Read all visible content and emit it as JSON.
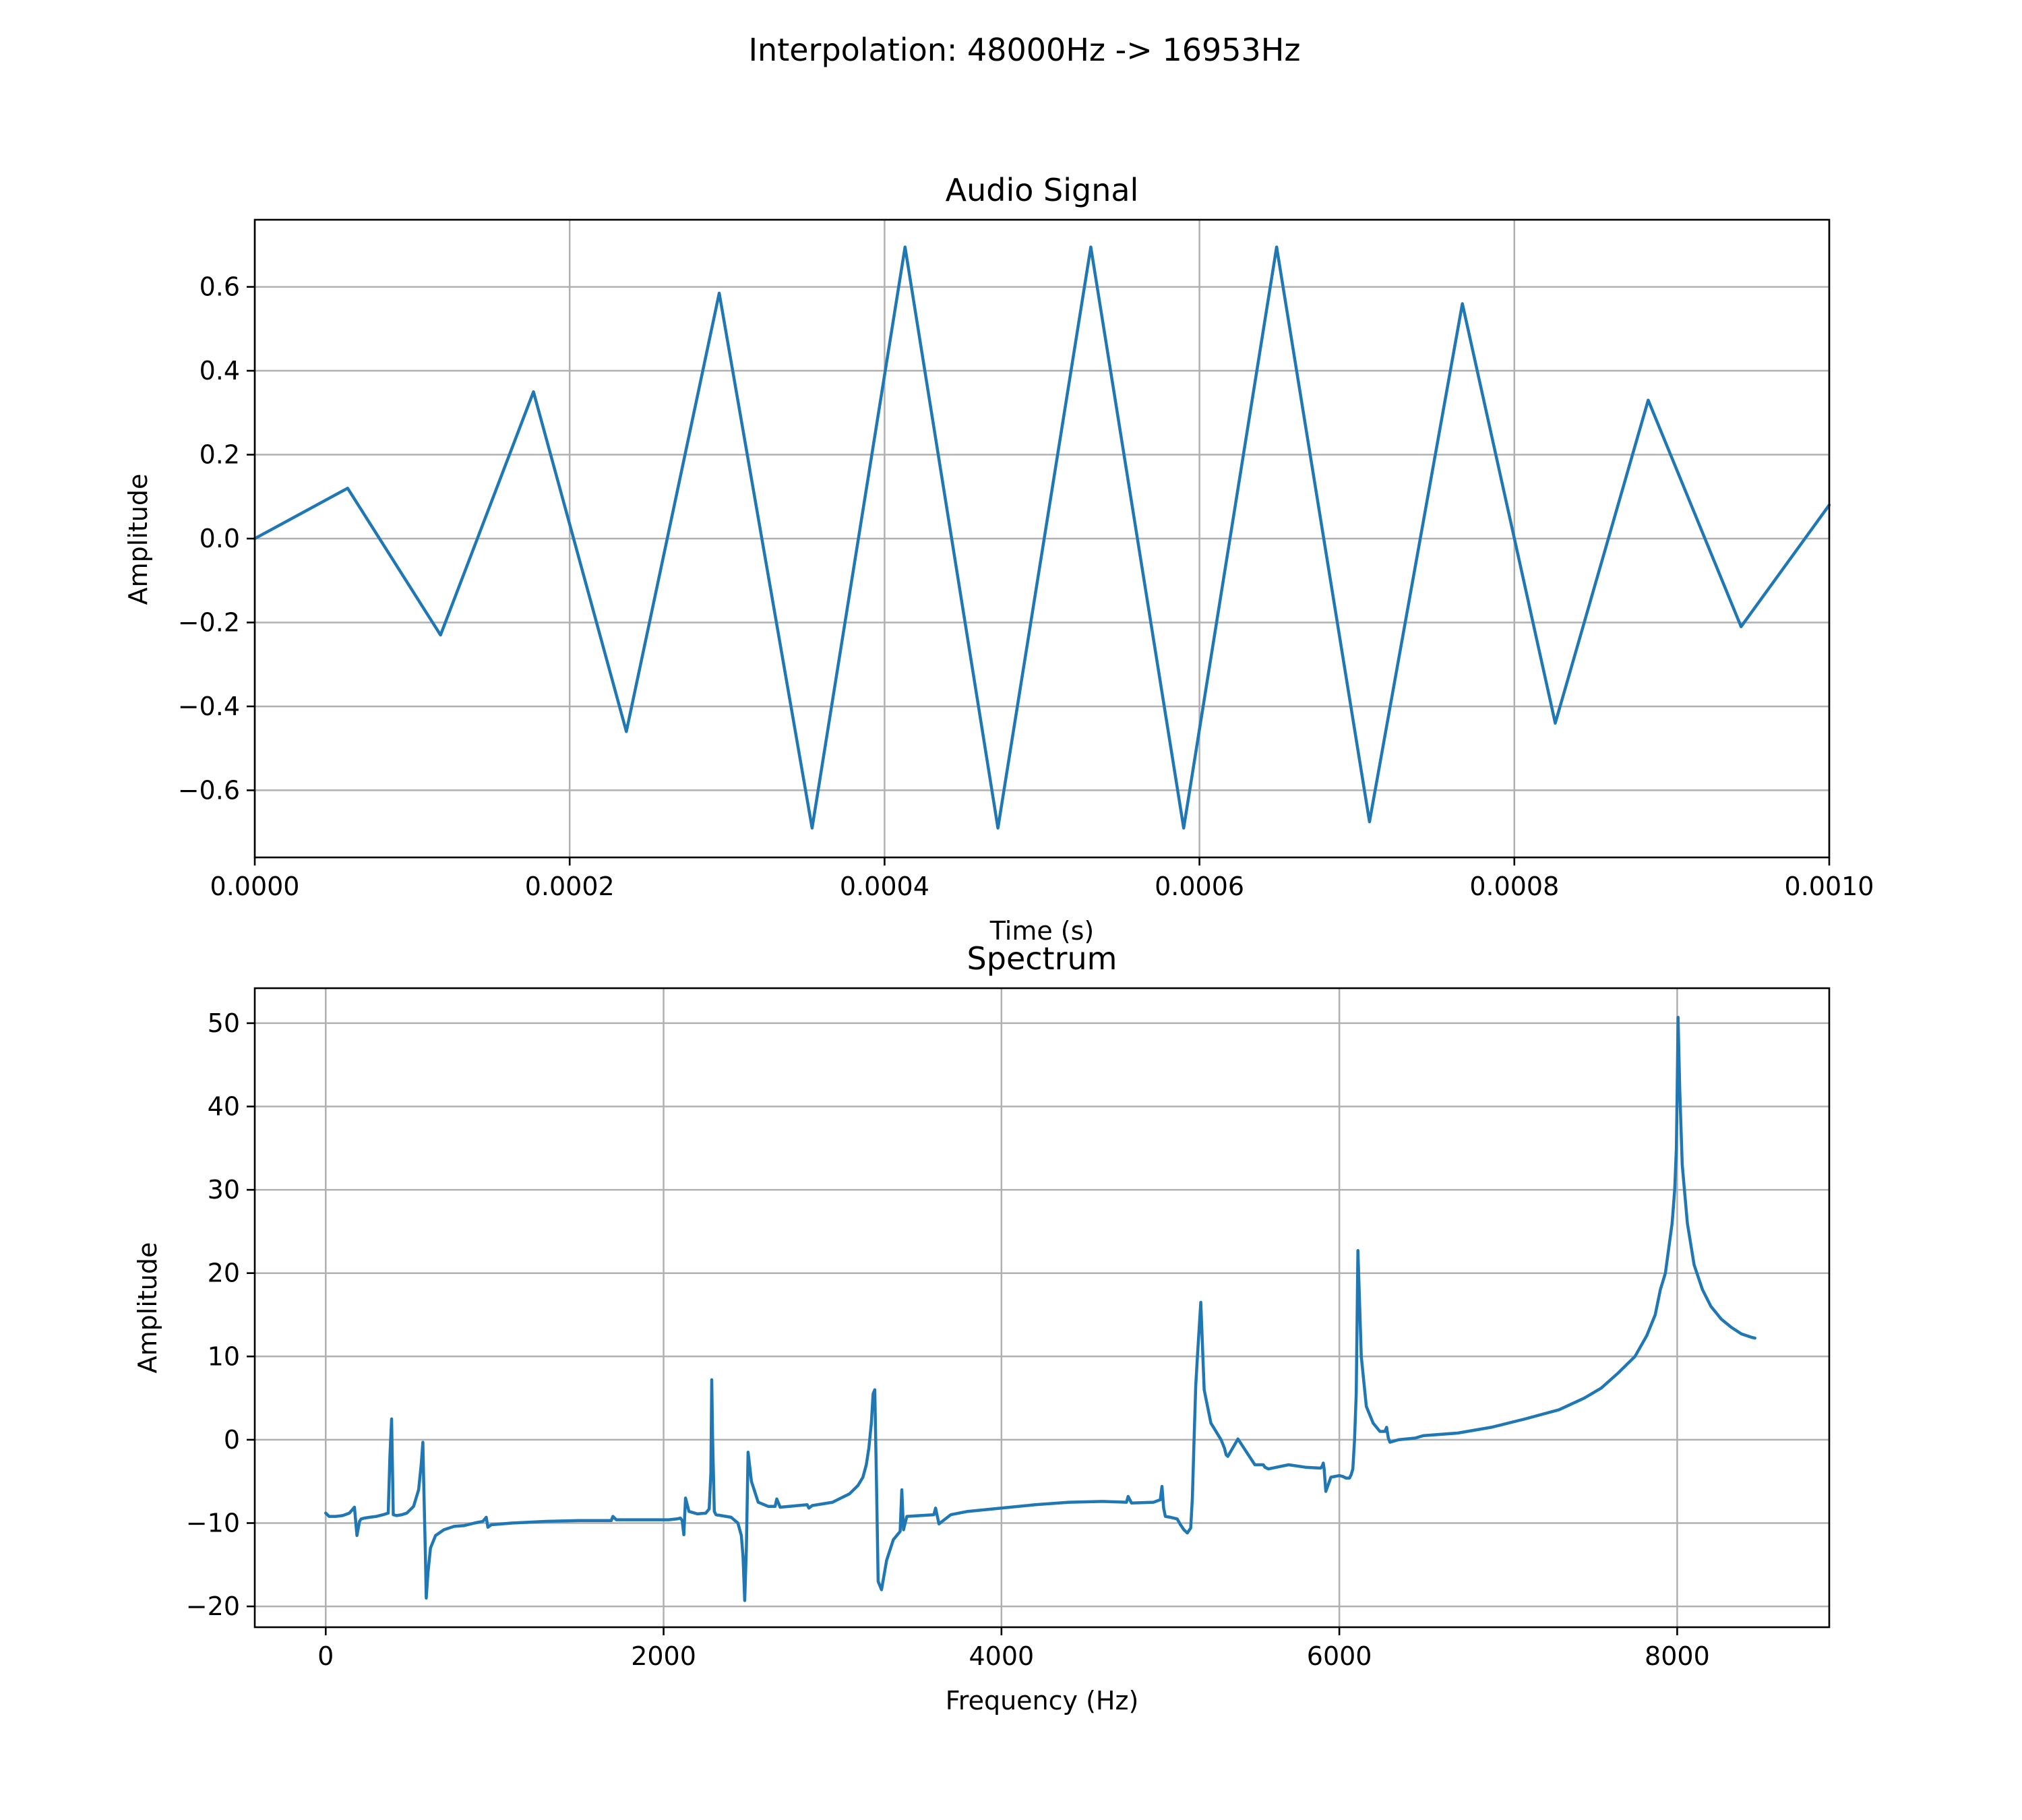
{
  "suptitle": "Interpolation: 48000Hz -> 16953Hz",
  "colors": {
    "line": "#1f77b4",
    "grid": "#b0b0b0",
    "axes": "#000000",
    "background": "#ffffff"
  },
  "chart_data": [
    {
      "id": "signal",
      "type": "line",
      "title": "Audio Signal",
      "xlabel": "Time (s)",
      "ylabel": "Amplitude",
      "grid": true,
      "xlim": [
        0,
        0.001
      ],
      "ylim": [
        -0.76,
        0.76
      ],
      "xticks": [
        0,
        0.0002,
        0.0004,
        0.0006,
        0.0008,
        0.001
      ],
      "xtick_labels": [
        "0.0000",
        "0.0002",
        "0.0004",
        "0.0006",
        "0.0008",
        "0.0010"
      ],
      "yticks": [
        -0.6,
        -0.4,
        -0.2,
        0.0,
        0.2,
        0.4,
        0.6
      ],
      "ytick_labels": [
        "−0.6",
        "−0.4",
        "−0.2",
        "0.0",
        "0.2",
        "0.4",
        "0.6"
      ],
      "series": [
        {
          "name": "signal",
          "x": [
            0,
            5.9e-05,
            0.000118,
            0.000177,
            0.000236,
            0.000295,
            0.000354,
            0.000413,
            0.000472,
            0.000531,
            0.00059,
            0.000649,
            0.000708,
            0.000767,
            0.000826,
            0.000885,
            0.000944,
            0.001
          ],
          "y": [
            0.0,
            0.12,
            -0.23,
            0.35,
            -0.46,
            0.585,
            -0.69,
            0.695,
            -0.69,
            0.695,
            -0.69,
            0.695,
            -0.675,
            0.56,
            -0.44,
            0.33,
            -0.21,
            0.08
          ]
        }
      ]
    },
    {
      "id": "spectrum",
      "type": "line",
      "title": "Spectrum",
      "xlabel": "Frequency (Hz)",
      "ylabel": "Amplitude",
      "grid": true,
      "xlim": [
        -420,
        8900
      ],
      "ylim": [
        -22.5,
        54.2
      ],
      "xticks": [
        0,
        2000,
        4000,
        6000,
        8000
      ],
      "xtick_labels": [
        "0",
        "2000",
        "4000",
        "6000",
        "8000"
      ],
      "yticks": [
        -20,
        -10,
        0,
        10,
        20,
        30,
        40,
        50
      ],
      "ytick_labels": [
        "−20",
        "−10",
        "0",
        "10",
        "20",
        "30",
        "40",
        "50"
      ],
      "series": [
        {
          "name": "spectrum",
          "x": [
            0,
            20,
            60,
            100,
            140,
            170,
            185,
            200,
            210,
            230,
            260,
            300,
            340,
            370,
            380,
            390,
            400,
            420,
            450,
            480,
            520,
            550,
            565,
            575,
            580,
            590,
            595,
            605,
            620,
            650,
            700,
            760,
            820,
            880,
            930,
            950,
            960,
            980,
            1100,
            1300,
            1500,
            1690,
            1700,
            1720,
            1900,
            2030,
            2080,
            2100,
            2110,
            2120,
            2130,
            2150,
            2200,
            2250,
            2270,
            2280,
            2285,
            2290,
            2300,
            2310,
            2400,
            2440,
            2460,
            2470,
            2480,
            2490,
            2500,
            2520,
            2560,
            2620,
            2660,
            2670,
            2690,
            2850,
            2860,
            2880,
            3000,
            3050,
            3100,
            3150,
            3180,
            3200,
            3215,
            3230,
            3240,
            3250,
            3260,
            3270,
            3290,
            3320,
            3360,
            3400,
            3410,
            3420,
            3440,
            3600,
            3610,
            3630,
            3700,
            3800,
            4000,
            4200,
            4400,
            4600,
            4740,
            4750,
            4770,
            4900,
            4940,
            4950,
            4960,
            4970,
            5000,
            5040,
            5060,
            5080,
            5100,
            5120,
            5130,
            5140,
            5150,
            5160,
            5180,
            5200,
            5240,
            5300,
            5320,
            5330,
            5340,
            5400,
            5500,
            5550,
            5560,
            5580,
            5700,
            5800,
            5880,
            5890,
            5900,
            5905,
            5910,
            5920,
            5950,
            6000,
            6020,
            6040,
            6060,
            6070,
            6080,
            6090,
            6100,
            6110,
            6130,
            6160,
            6200,
            6240,
            6270,
            6280,
            6290,
            6300,
            6350,
            6450,
            6480,
            6500,
            6700,
            6900,
            7100,
            7300,
            7450,
            7550,
            7650,
            7750,
            7820,
            7870,
            7900,
            7930,
            7950,
            7970,
            7985,
            7995,
            8000,
            8005,
            8015,
            8030,
            8060,
            8100,
            8150,
            8200,
            8260,
            8320,
            8380,
            8440,
            8460
          ],
          "y": [
            -8.8,
            -9.2,
            -9.2,
            -9.1,
            -8.8,
            -8.1,
            -11.5,
            -9.8,
            -9.5,
            -9.4,
            -9.3,
            -9.2,
            -9.0,
            -8.8,
            -2.0,
            2.5,
            -9.0,
            -9.1,
            -9.0,
            -8.8,
            -8.0,
            -6.0,
            -3.0,
            -0.3,
            -5.0,
            -14.0,
            -19.0,
            -16.0,
            -13.0,
            -11.5,
            -10.8,
            -10.4,
            -10.3,
            -10.0,
            -9.8,
            -9.3,
            -10.5,
            -10.2,
            -10.0,
            -9.8,
            -9.7,
            -9.7,
            -9.2,
            -9.6,
            -9.6,
            -9.6,
            -9.5,
            -9.4,
            -9.7,
            -11.4,
            -7.0,
            -8.6,
            -8.9,
            -8.8,
            -8.3,
            -4.0,
            7.2,
            0.5,
            -8.6,
            -9.0,
            -9.3,
            -10.0,
            -11.5,
            -14.0,
            -19.3,
            -13.0,
            -1.5,
            -5.0,
            -7.5,
            -8.0,
            -8.0,
            -7.1,
            -8.1,
            -7.8,
            -8.2,
            -7.9,
            -7.5,
            -7.0,
            -6.5,
            -5.5,
            -4.5,
            -3.0,
            -1.0,
            2.0,
            5.5,
            6.0,
            -5.0,
            -17.0,
            -18.0,
            -14.5,
            -12.0,
            -11.0,
            -6.0,
            -10.8,
            -9.2,
            -9.0,
            -8.2,
            -10.1,
            -9.0,
            -8.6,
            -8.2,
            -7.8,
            -7.5,
            -7.4,
            -7.5,
            -6.8,
            -7.6,
            -7.5,
            -7.2,
            -5.6,
            -8.2,
            -9.2,
            -9.3,
            -9.5,
            -10.2,
            -10.8,
            -11.2,
            -10.6,
            -7.0,
            0.0,
            6.5,
            10.0,
            16.5,
            6.0,
            2.0,
            0.0,
            -1.0,
            -1.8,
            -2.0,
            0.1,
            -3.0,
            -3.0,
            -3.3,
            -3.5,
            -3.0,
            -3.3,
            -3.4,
            -3.4,
            -3.1,
            -2.8,
            -3.5,
            -6.2,
            -4.5,
            -4.3,
            -4.4,
            -4.6,
            -4.6,
            -4.2,
            -3.5,
            0.0,
            5.5,
            22.7,
            10.0,
            4.0,
            2.0,
            1.0,
            1.0,
            1.5,
            0.2,
            -0.3,
            0.0,
            0.2,
            0.4,
            0.5,
            0.8,
            1.5,
            2.5,
            3.6,
            5.0,
            6.2,
            8.0,
            10.0,
            12.5,
            15.0,
            18.0,
            20.0,
            23.0,
            26.0,
            30.0,
            35.0,
            42.0,
            50.7,
            42.0,
            33.0,
            26.0,
            21.0,
            18.0,
            16.0,
            14.5,
            13.5,
            12.7,
            12.3,
            12.2
          ]
        }
      ]
    }
  ]
}
